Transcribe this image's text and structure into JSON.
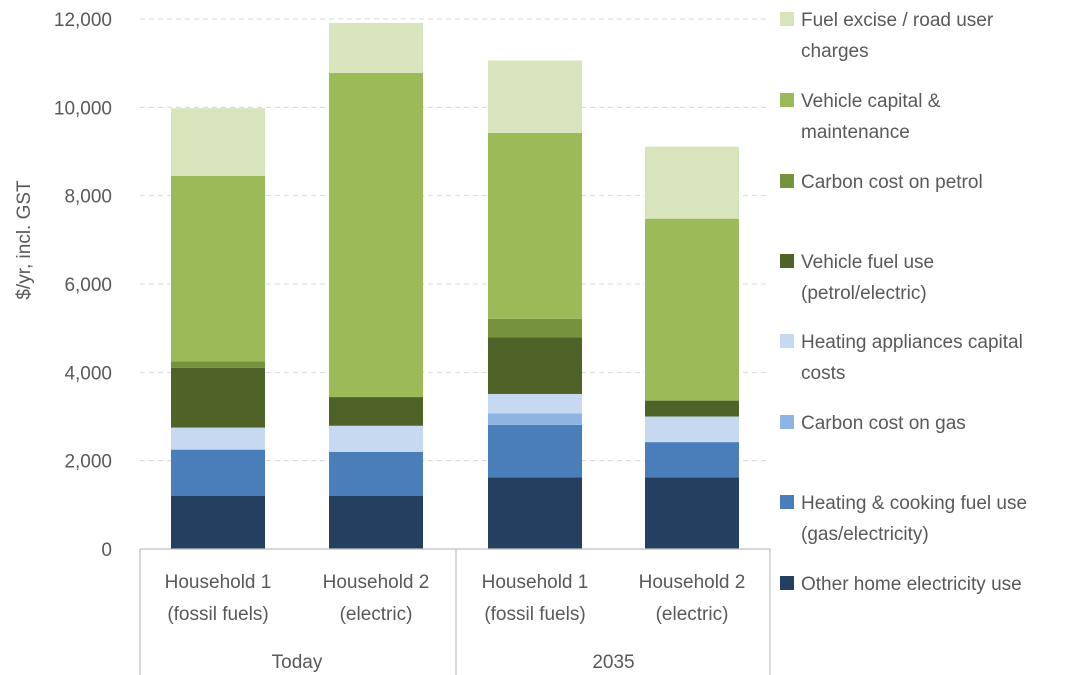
{
  "chart_data": {
    "type": "bar",
    "stacked": true,
    "ylabel": "$/yr, incl. GST",
    "xlabel": "",
    "ylim": [
      0,
      12000
    ],
    "yticks": [
      "0",
      "2,000",
      "4,000",
      "6,000",
      "8,000",
      "10,000",
      "12,000"
    ],
    "grid": true,
    "legend_position": "right",
    "categories": [
      [
        "Household 1",
        "(fossil fuels)"
      ],
      [
        "Household 2",
        "(electric)"
      ],
      [
        "Household 1",
        "(fossil fuels)"
      ],
      [
        "Household 2",
        "(electric)"
      ]
    ],
    "groups": [
      {
        "label": "Today",
        "span": [
          0,
          1
        ]
      },
      {
        "label": "2035",
        "span": [
          2,
          3
        ]
      }
    ],
    "series": [
      {
        "name": "Other home electricity use",
        "color": "#243f60",
        "values": [
          1200,
          1200,
          1620,
          1620
        ]
      },
      {
        "name": "Heating & cooking fuel use (gas/electricity)",
        "color": "#4a7ebb",
        "values": [
          1050,
          1000,
          1190,
          800
        ]
      },
      {
        "name": "Carbon cost on gas",
        "color": "#8db4e2",
        "values": [
          0,
          0,
          260,
          0
        ]
      },
      {
        "name": "Heating appliances capital costs",
        "color": "#c6d9f1",
        "values": [
          500,
          590,
          440,
          580
        ]
      },
      {
        "name": "Vehicle fuel use (petrol/electric)",
        "color": "#4f6228",
        "values": [
          1350,
          650,
          1280,
          360
        ]
      },
      {
        "name": "Carbon cost on petrol",
        "color": "#76923c",
        "values": [
          150,
          0,
          420,
          0
        ]
      },
      {
        "name": "Vehicle capital & maintenance",
        "color": "#9bbb59",
        "values": [
          4200,
          7340,
          4210,
          4120
        ]
      },
      {
        "name": "Fuel excise / road user charges",
        "color": "#d8e4bc",
        "values": [
          1530,
          1130,
          1640,
          1630
        ]
      }
    ],
    "legend": [
      {
        "series": 7,
        "lines": [
          "Fuel excise / road user",
          "charges"
        ]
      },
      {
        "series": 6,
        "lines": [
          "Vehicle capital &",
          "maintenance"
        ]
      },
      {
        "series": 5,
        "lines": [
          "Carbon cost on petrol"
        ]
      },
      {
        "series": 4,
        "lines": [
          "Vehicle fuel use",
          "(petrol/electric)"
        ]
      },
      {
        "series": 3,
        "lines": [
          "Heating appliances capital",
          "costs"
        ]
      },
      {
        "series": 2,
        "lines": [
          "Carbon cost on gas"
        ]
      },
      {
        "series": 1,
        "lines": [
          "Heating & cooking fuel use",
          "(gas/electricity)"
        ]
      },
      {
        "series": 0,
        "lines": [
          "Other home electricity use"
        ]
      }
    ]
  }
}
